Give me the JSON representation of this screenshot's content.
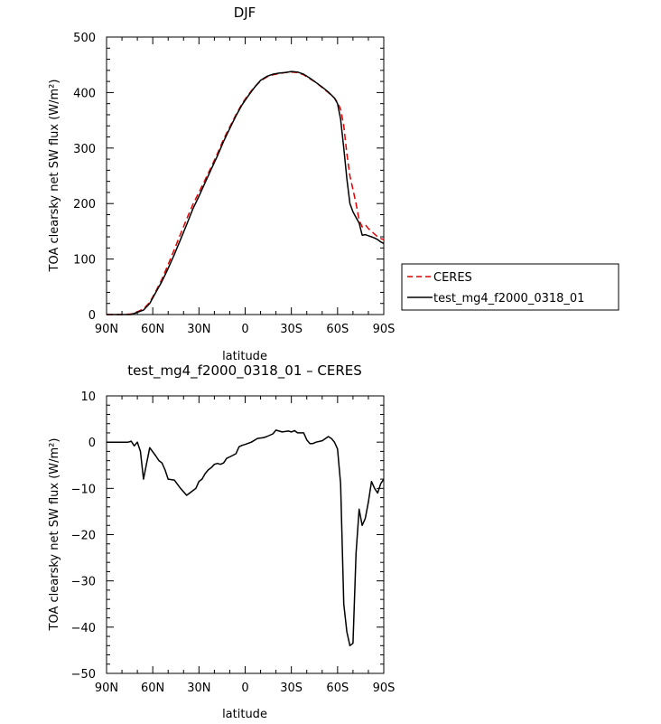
{
  "chart_data": [
    {
      "type": "line",
      "title": "DJF",
      "xlabel": "latitude",
      "ylabel": "TOA clearsky net SW flux (W/m²)",
      "xlim": [
        90,
        -90
      ],
      "ylim": [
        0,
        500
      ],
      "xticks": [
        90,
        60,
        30,
        0,
        -30,
        -60,
        -90
      ],
      "xtick_labels": [
        "90N",
        "60N",
        "30N",
        "0",
        "30S",
        "60S",
        "90S"
      ],
      "yticks": [
        0,
        100,
        200,
        300,
        400,
        500
      ],
      "ytick_labels": [
        "0",
        "100",
        "200",
        "300",
        "400",
        "500"
      ],
      "legend": {
        "placement": "right-outside"
      },
      "series": [
        {
          "name": "CERES",
          "color": "#e00000",
          "dash": "dashed",
          "x": [
            90,
            80,
            74,
            70,
            66,
            62,
            58,
            54,
            50,
            46,
            42,
            38,
            34,
            30,
            26,
            22,
            18,
            14,
            10,
            6,
            2,
            -2,
            -6,
            -10,
            -14,
            -18,
            -22,
            -26,
            -30,
            -34,
            -38,
            -42,
            -46,
            -50,
            -54,
            -58,
            -60,
            -62,
            -64,
            -66,
            -68,
            -70,
            -72,
            -74,
            -76,
            -78,
            -80,
            -82,
            -84,
            -86,
            -88,
            -90
          ],
          "y": [
            0,
            0,
            1,
            5,
            10,
            22,
            42,
            64,
            90,
            117,
            145,
            172,
            198,
            220,
            243,
            266,
            290,
            316,
            338,
            360,
            380,
            396,
            410,
            421,
            428,
            432,
            434,
            436,
            437,
            436,
            432,
            425,
            418,
            409,
            400,
            390,
            382,
            370,
            340,
            290,
            250,
            225,
            200,
            170,
            158,
            162,
            155,
            150,
            145,
            140,
            137,
            135
          ]
        },
        {
          "name": "test_mg4_f2000_0318_01",
          "color": "#000000",
          "dash": "solid",
          "x": [
            90,
            80,
            74,
            70,
            66,
            62,
            58,
            54,
            50,
            46,
            42,
            38,
            34,
            30,
            26,
            22,
            18,
            14,
            10,
            6,
            2,
            -2,
            -6,
            -10,
            -14,
            -18,
            -22,
            -26,
            -30,
            -34,
            -38,
            -42,
            -46,
            -50,
            -54,
            -58,
            -60,
            -62,
            -64,
            -66,
            -68,
            -70,
            -72,
            -74,
            -76,
            -78,
            -80,
            -82,
            -84,
            -86,
            -88,
            -90
          ],
          "y": [
            0,
            0,
            0,
            4,
            8,
            20,
            40,
            60,
            83,
            108,
            135,
            162,
            190,
            213,
            238,
            262,
            286,
            312,
            335,
            358,
            378,
            394,
            409,
            422,
            429,
            433,
            435,
            436,
            438,
            437,
            433,
            426,
            418,
            410,
            401,
            390,
            380,
            352,
            300,
            245,
            200,
            185,
            175,
            165,
            143,
            144,
            142,
            140,
            138,
            135,
            131,
            128
          ]
        }
      ]
    },
    {
      "type": "line",
      "title": "test_mg4_f2000_0318_01 – CERES",
      "xlabel": "latitude",
      "ylabel": "TOA clearsky net SW flux (W/m²)",
      "xlim": [
        90,
        -90
      ],
      "ylim": [
        -50,
        10
      ],
      "xticks": [
        90,
        60,
        30,
        0,
        -30,
        -60,
        -90
      ],
      "xtick_labels": [
        "90N",
        "60N",
        "30N",
        "0",
        "30S",
        "60S",
        "90S"
      ],
      "yticks": [
        -50,
        -40,
        -30,
        -20,
        -10,
        0,
        10
      ],
      "ytick_labels": [
        "−50",
        "−40",
        "−30",
        "−20",
        "−10",
        "0",
        "10"
      ],
      "series": [
        {
          "color": "#000000",
          "dash": "solid",
          "x": [
            90,
            86,
            82,
            78,
            76,
            74,
            72,
            70,
            68,
            66,
            62,
            58,
            56,
            54,
            52,
            50,
            46,
            42,
            38,
            34,
            32,
            30,
            28,
            26,
            24,
            22,
            20,
            18,
            16,
            14,
            12,
            10,
            6,
            4,
            2,
            0,
            -4,
            -8,
            -12,
            -14,
            -16,
            -18,
            -20,
            -24,
            -28,
            -30,
            -32,
            -34,
            -38,
            -40,
            -42,
            -44,
            -46,
            -50,
            -54,
            -56,
            -58,
            -60,
            -62,
            -64,
            -66,
            -68,
            -70,
            -72,
            -74,
            -76,
            -78,
            -80,
            -82,
            -84,
            -86,
            -88,
            -90
          ],
          "y": [
            0,
            0,
            0,
            0,
            0,
            0.2,
            -0.8,
            0,
            -2,
            -8,
            -1.2,
            -3,
            -4,
            -4.5,
            -6,
            -8,
            -8.2,
            -10,
            -11.5,
            -10.5,
            -10,
            -8.5,
            -8,
            -6.8,
            -6,
            -5.5,
            -4.8,
            -4.6,
            -4.8,
            -4.5,
            -3.5,
            -3.2,
            -2.5,
            -1,
            -0.7,
            -0.5,
            0,
            0.8,
            1,
            1.2,
            1.5,
            1.8,
            2.6,
            2.2,
            2.4,
            2.2,
            2.5,
            2,
            2,
            0.5,
            -0.3,
            -0.3,
            0,
            0.3,
            1.2,
            0.8,
            0,
            -1.5,
            -9,
            -35,
            -41,
            -44,
            -43.5,
            -24,
            -14.5,
            -18,
            -16.5,
            -13,
            -8.5,
            -10,
            -11,
            -9,
            -8
          ]
        }
      ]
    }
  ]
}
